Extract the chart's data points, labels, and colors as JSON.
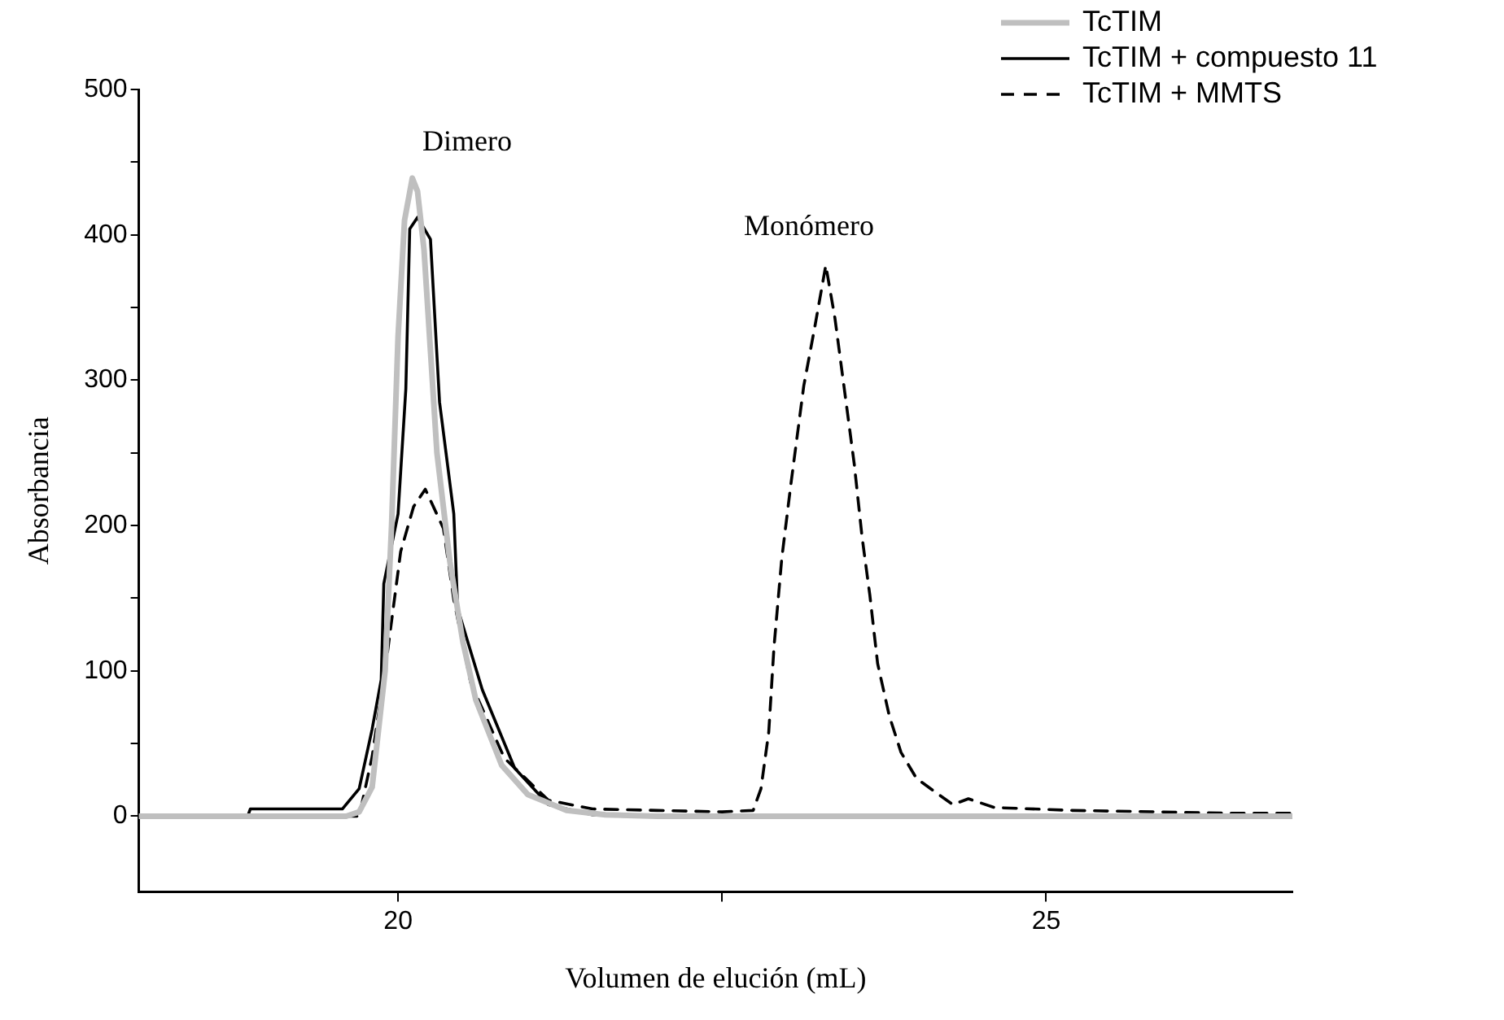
{
  "chart_data": {
    "type": "line",
    "xlabel": "Volumen de elución (mL)",
    "ylabel": "Absorbancia",
    "xlim": [
      18,
      26.9
    ],
    "xticks": [
      20,
      {
        "value": 22.5,
        "label": null
      },
      25
    ],
    "ylim": [
      -52,
      500
    ],
    "yticks": [
      0,
      {
        "value": 50,
        "label": null
      },
      100,
      {
        "value": 150,
        "label": null
      },
      200,
      {
        "value": 250,
        "label": null
      },
      300,
      {
        "value": 350,
        "label": null
      },
      400,
      {
        "value": 450,
        "label": null
      },
      500
    ],
    "grid": false,
    "legend": "top right",
    "marker": "none",
    "annotations": [
      "Dimero",
      "Monómero"
    ],
    "series": [
      {
        "name": "TcTIM",
        "color": "#bfbfbf",
        "line_style": "solid",
        "x": [
          18,
          19.6,
          19.7,
          19.8,
          19.9,
          19.95,
          20.0,
          20.05,
          20.11,
          20.15,
          20.2,
          20.25,
          20.3,
          20.4,
          20.5,
          20.6,
          20.8,
          21.0,
          21.3,
          21.6,
          22.0,
          26.9
        ],
        "values": [
          0,
          0,
          3,
          20,
          100,
          200,
          330,
          410,
          439,
          430,
          390,
          320,
          250,
          175,
          120,
          80,
          35,
          15,
          4,
          1,
          0,
          0
        ]
      },
      {
        "name": "TcTIM + compuesto 11",
        "color": "#000000",
        "line_style": "solid",
        "x": [
          18,
          18.84,
          18.86,
          19.57,
          19.7,
          19.8,
          19.87,
          19.89,
          20.0,
          20.06,
          20.09,
          20.15,
          20.25,
          20.32,
          20.43,
          20.46,
          20.65,
          20.9,
          21.16,
          21.5,
          26.9
        ],
        "values": [
          0,
          0,
          5,
          5,
          19,
          60,
          94,
          160,
          208,
          294,
          404,
          412,
          397,
          285,
          208,
          143,
          87,
          33,
          8,
          1,
          0
        ]
      },
      {
        "name": "TcTIM + MMTS",
        "color": "#000000",
        "line_style": "dashed",
        "x": [
          18,
          19.7,
          19.8,
          19.91,
          20.02,
          20.12,
          20.21,
          20.35,
          20.43,
          20.56,
          20.82,
          21.16,
          21.5,
          22.0,
          22.5,
          22.74,
          22.8,
          22.86,
          22.9,
          22.96,
          23.03,
          23.13,
          23.22,
          23.3,
          23.37,
          23.44,
          23.52,
          23.58,
          23.64,
          23.7,
          23.79,
          23.88,
          24.0,
          24.17,
          24.28,
          24.4,
          24.6,
          25.2,
          26.5,
          26.9
        ],
        "values": [
          0,
          0,
          41,
          107,
          182,
          213,
          225,
          198,
          149,
          92,
          40,
          11,
          5,
          4,
          3,
          4,
          19,
          58,
          116,
          177,
          228,
          296,
          339,
          379,
          343,
          296,
          242,
          192,
          152,
          105,
          69,
          44,
          26,
          15,
          8,
          12,
          6,
          4,
          2,
          2
        ]
      }
    ]
  }
}
